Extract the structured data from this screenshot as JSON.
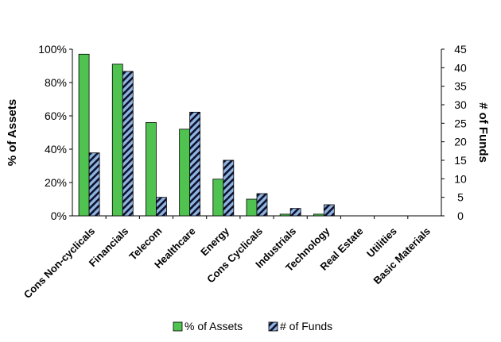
{
  "chart_data": {
    "type": "bar",
    "categories": [
      "Cons Non-cyclicals",
      "Financials",
      "Telecom",
      "Healthcare",
      "Energy",
      "Cons Cyclicals",
      "Industrials",
      "Technology",
      "Real Estate",
      "Utilities",
      "Basic Materials"
    ],
    "series": [
      {
        "name": "% of Assets",
        "axis": "left",
        "values": [
          97,
          91,
          56,
          52,
          22,
          10,
          1,
          1,
          0,
          0,
          0
        ],
        "color": "#4fc24f",
        "pattern": "solid"
      },
      {
        "name": "# of Funds",
        "axis": "right",
        "values": [
          17,
          39,
          5,
          28,
          15,
          6,
          2,
          3,
          0,
          0,
          0
        ],
        "color": "#8db4e2",
        "pattern": "diagonal-stripes"
      }
    ],
    "ylabel": "% of Assets",
    "y2label": "# of Funds",
    "ylim": [
      0,
      100
    ],
    "y2lim": [
      0,
      45
    ],
    "yticks": [
      "0%",
      "20%",
      "40%",
      "60%",
      "80%",
      "100%"
    ],
    "y2ticks": [
      "0",
      "5",
      "10",
      "15",
      "20",
      "25",
      "30",
      "35",
      "40",
      "45"
    ],
    "legend_position": "bottom",
    "grid": false
  }
}
